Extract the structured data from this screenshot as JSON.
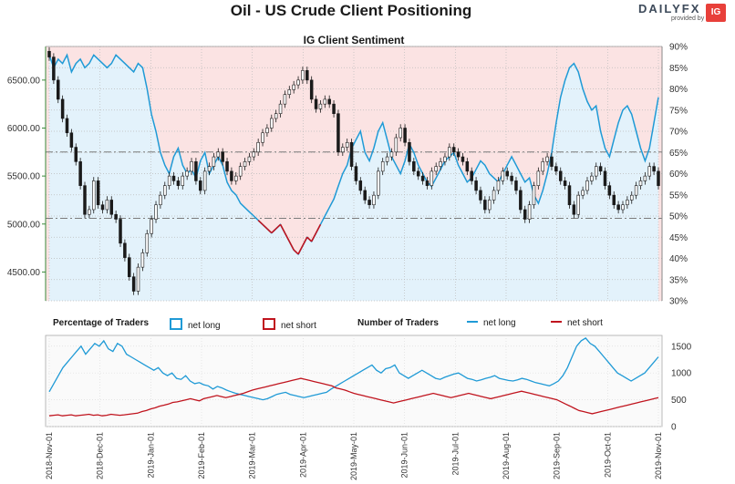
{
  "title": "Oil - US Crude Client Positioning",
  "subtitle": "IG Client Sentiment",
  "logo": {
    "text": "DAILYFX",
    "sub": "provided by",
    "badge": "IG"
  },
  "colors": {
    "long": "#1f9ad6",
    "short": "#c0141e",
    "long_fill": "#e3f2fb",
    "short_fill": "#fbe3e3",
    "candle_up": "#ffffff",
    "candle_down": "#1a1a1a"
  },
  "legend": {
    "pct_title": "Percentage of Traders",
    "num_title": "Number of Traders",
    "net_long": "net long",
    "net_short": "net short"
  },
  "chart_data": [
    {
      "type": "candlestick",
      "ylim": [
        4200,
        6850
      ],
      "yticks": [
        "6500.00",
        "6000.00",
        "5500.00",
        "5000.00",
        "4500.00"
      ],
      "ytick_values": [
        6500,
        6000,
        5500,
        5000,
        4500
      ],
      "price_ref_lines": [
        5750,
        5060
      ],
      "right_axis": {
        "ylim": [
          30,
          90
        ],
        "ticks": [
          "90%",
          "85%",
          "80%",
          "75%",
          "70%",
          "65%",
          "60%",
          "55%",
          "50%",
          "45%",
          "40%",
          "35%",
          "30%"
        ]
      },
      "price_close": [
        6740,
        6500,
        6300,
        6100,
        5950,
        5800,
        5650,
        5400,
        5100,
        5150,
        5450,
        5200,
        5150,
        5250,
        5100,
        5050,
        4800,
        4650,
        4450,
        4300,
        4550,
        4700,
        4900,
        5050,
        5200,
        5300,
        5400,
        5500,
        5450,
        5400,
        5500,
        5550,
        5650,
        5450,
        5350,
        5550,
        5600,
        5700,
        5750,
        5650,
        5550,
        5450,
        5500,
        5600,
        5650,
        5700,
        5750,
        5850,
        5950,
        6000,
        6100,
        6150,
        6250,
        6350,
        6400,
        6450,
        6500,
        6600,
        6500,
        6300,
        6200,
        6250,
        6300,
        6250,
        6150,
        5750,
        5800,
        5850,
        5600,
        5450,
        5350,
        5250,
        5200,
        5300,
        5550,
        5650,
        5700,
        5750,
        5900,
        6000,
        5850,
        5650,
        5550,
        5500,
        5450,
        5400,
        5550,
        5600,
        5650,
        5700,
        5800,
        5750,
        5700,
        5650,
        5550,
        5450,
        5350,
        5250,
        5150,
        5250,
        5350,
        5450,
        5550,
        5500,
        5450,
        5350,
        5150,
        5050,
        5200,
        5400,
        5550,
        5650,
        5700,
        5600,
        5550,
        5450,
        5400,
        5200,
        5100,
        5300,
        5350,
        5450,
        5500,
        5600,
        5550,
        5400,
        5300,
        5200,
        5150,
        5200,
        5250,
        5300,
        5400,
        5450,
        5500,
        5600,
        5550,
        5400
      ],
      "net_long_pct": [
        88,
        85,
        87,
        86,
        88,
        84,
        86,
        87,
        85,
        86,
        88,
        87,
        86,
        85,
        86,
        88,
        87,
        86,
        85,
        84,
        86,
        85,
        80,
        74,
        70,
        65,
        62,
        60,
        64,
        66,
        62,
        60,
        61,
        59,
        63,
        65,
        60,
        62,
        64,
        62,
        58,
        56,
        55,
        53,
        52,
        51,
        50,
        49,
        48,
        47,
        46,
        47,
        48,
        46,
        44,
        42,
        41,
        43,
        45,
        44,
        46,
        48,
        50,
        52,
        54,
        57,
        60,
        62,
        66,
        68,
        70,
        65,
        63,
        66,
        70,
        72,
        68,
        64,
        62,
        60,
        63,
        67,
        65,
        62,
        60,
        58,
        57,
        59,
        61,
        63,
        64,
        65,
        62,
        60,
        58,
        59,
        61,
        63,
        62,
        60,
        59,
        58,
        60,
        62,
        64,
        62,
        60,
        58,
        59,
        55,
        53,
        56,
        60,
        65,
        72,
        78,
        82,
        85,
        86,
        84,
        80,
        77,
        75,
        76,
        70,
        66,
        64,
        68,
        72,
        75,
        76,
        74,
        70,
        66,
        63,
        66,
        72,
        78
      ],
      "series": [
        {
          "name": "net long"
        },
        {
          "name": "net short"
        }
      ]
    },
    {
      "type": "line",
      "ylim": [
        0,
        1700
      ],
      "yticks": [
        "1500",
        "1000",
        "500",
        "0"
      ],
      "ytick_values": [
        1500,
        1000,
        500,
        0
      ],
      "xlabels": [
        "2018-Nov-01",
        "2018-Dec-01",
        "2019-Jan-01",
        "2019-Feb-01",
        "2019-Mar-01",
        "2019-Apr-01",
        "2019-May-01",
        "2019-Jun-01",
        "2019-Jul-01",
        "2019-Aug-01",
        "2019-Sep-01",
        "2019-Oct-01",
        "2019-Nov-01"
      ],
      "series": [
        {
          "name": "net long",
          "values": [
            650,
            800,
            950,
            1100,
            1200,
            1300,
            1400,
            1500,
            1350,
            1450,
            1550,
            1500,
            1600,
            1450,
            1400,
            1550,
            1500,
            1350,
            1300,
            1250,
            1200,
            1150,
            1100,
            1050,
            1100,
            1000,
            950,
            1000,
            900,
            880,
            950,
            850,
            800,
            820,
            780,
            760,
            700,
            750,
            720,
            680,
            650,
            620,
            600,
            580,
            560,
            540,
            520,
            500,
            520,
            560,
            600,
            620,
            640,
            600,
            580,
            560,
            540,
            560,
            580,
            600,
            620,
            640,
            700,
            750,
            800,
            850,
            900,
            950,
            1000,
            1050,
            1100,
            1150,
            1050,
            1000,
            1080,
            1100,
            1150,
            1000,
            950,
            900,
            950,
            1000,
            1050,
            1000,
            950,
            900,
            880,
            920,
            950,
            980,
            1000,
            950,
            900,
            880,
            850,
            870,
            900,
            920,
            950,
            900,
            880,
            860,
            850,
            870,
            900,
            880,
            850,
            820,
            800,
            780,
            760,
            800,
            850,
            950,
            1100,
            1300,
            1500,
            1600,
            1650,
            1550,
            1500,
            1400,
            1300,
            1200,
            1100,
            1000,
            950,
            900,
            850,
            900,
            950,
            1000,
            1100,
            1200,
            1300
          ]
        },
        {
          "name": "net short",
          "values": [
            200,
            210,
            220,
            200,
            210,
            220,
            200,
            210,
            220,
            230,
            210,
            220,
            200,
            210,
            230,
            220,
            210,
            220,
            230,
            240,
            250,
            280,
            300,
            330,
            350,
            380,
            400,
            420,
            450,
            460,
            480,
            500,
            520,
            500,
            480,
            520,
            540,
            560,
            580,
            560,
            540,
            560,
            580,
            600,
            620,
            650,
            680,
            700,
            720,
            740,
            760,
            780,
            800,
            820,
            840,
            860,
            880,
            900,
            880,
            860,
            840,
            820,
            800,
            780,
            760,
            720,
            700,
            680,
            650,
            620,
            600,
            580,
            560,
            540,
            520,
            500,
            480,
            460,
            440,
            460,
            480,
            500,
            520,
            540,
            560,
            580,
            600,
            620,
            600,
            580,
            560,
            540,
            560,
            580,
            600,
            620,
            600,
            580,
            560,
            540,
            520,
            540,
            560,
            580,
            600,
            620,
            640,
            660,
            640,
            620,
            600,
            580,
            560,
            540,
            520,
            500,
            460,
            420,
            380,
            340,
            300,
            280,
            260,
            240,
            260,
            280,
            300,
            320,
            340,
            360,
            380,
            400,
            420,
            440,
            460,
            480,
            500,
            520,
            540
          ]
        }
      ]
    }
  ]
}
